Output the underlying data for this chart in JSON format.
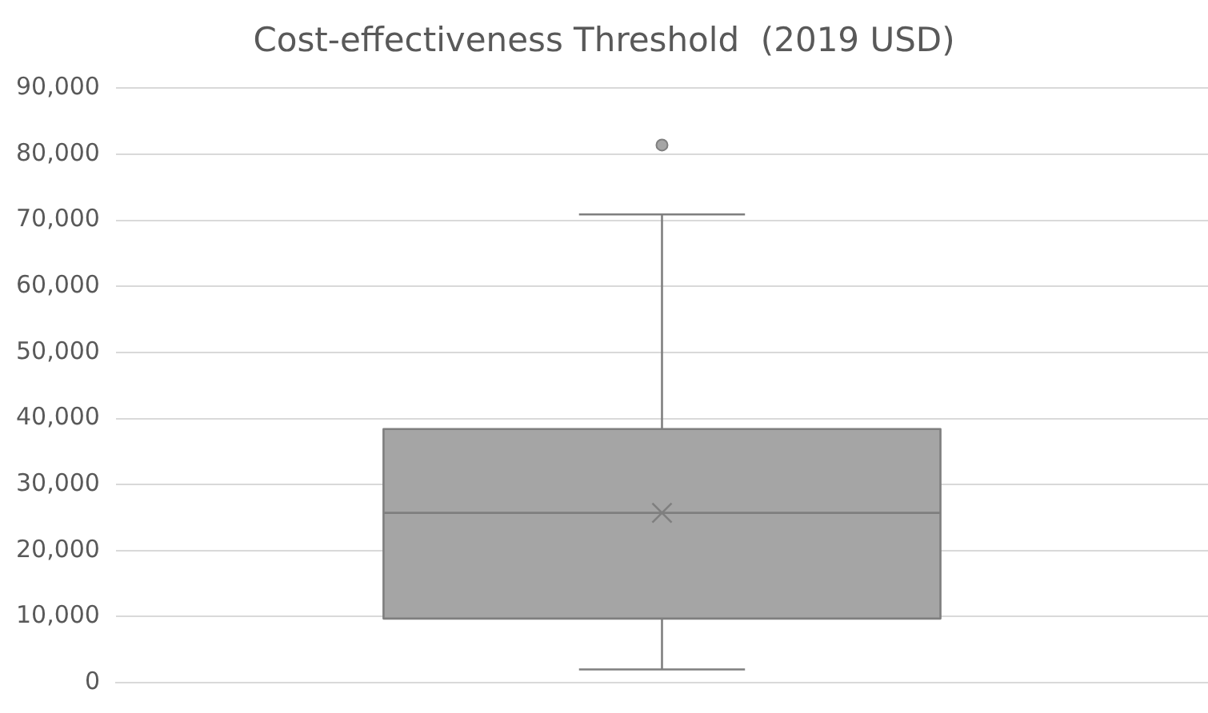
{
  "chart_data": {
    "type": "box",
    "title": "Cost-effectiveness Threshold  (2019 USD)",
    "categories": [
      null
    ],
    "series": [
      {
        "color": "#a5a5a5",
        "boxes": [
          {
            "low": 2000,
            "q1": 9700,
            "median": 25700,
            "q3": 38400,
            "high": 70900,
            "mean": 25700,
            "outliers": [
              81400
            ]
          }
        ]
      }
    ],
    "ylim": [
      0,
      90000
    ],
    "yticks": [
      0,
      {
        "value": 10000,
        "label": "10,000"
      },
      {
        "value": 20000,
        "label": "20,000"
      },
      {
        "value": 30000,
        "label": "30,000"
      },
      {
        "value": 40000,
        "label": "40,000"
      },
      {
        "value": 50000,
        "label": "50,000"
      },
      {
        "value": 60000,
        "label": "60,000"
      },
      {
        "value": 70000,
        "label": "70,000"
      },
      {
        "value": 80000,
        "label": "80,000"
      },
      {
        "value": 90000,
        "label": "90,000"
      }
    ],
    "grid": "y",
    "tick_labels": "y",
    "legend": false
  }
}
